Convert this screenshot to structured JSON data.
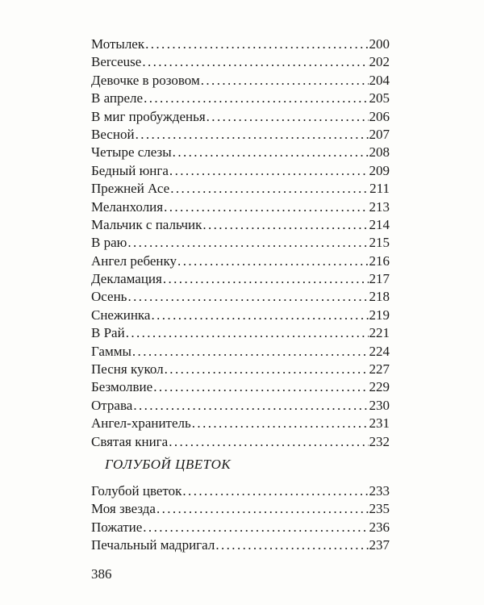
{
  "entries": [
    {
      "title": "Мотылек",
      "page": "200"
    },
    {
      "title": "Berceuse",
      "page": "202"
    },
    {
      "title": "Девочке в розовом",
      "page": "204"
    },
    {
      "title": "В апреле",
      "page": "205"
    },
    {
      "title": "В миг пробужденья",
      "page": "206"
    },
    {
      "title": "Весной",
      "page": "207"
    },
    {
      "title": "Четыре слезы",
      "page": "208"
    },
    {
      "title": "Бедный юнга",
      "page": "209"
    },
    {
      "title": "Прежней Асе",
      "page": "211"
    },
    {
      "title": "Меланхолия",
      "page": "213"
    },
    {
      "title": "Мальчик с пальчик",
      "page": "214"
    },
    {
      "title": "В раю",
      "page": "215"
    },
    {
      "title": "Ангел ребенку",
      "page": "216"
    },
    {
      "title": "Декламация",
      "page": "217"
    },
    {
      "title": "Осень",
      "page": "218"
    },
    {
      "title": "Снежинка",
      "page": "219"
    },
    {
      "title": "В Рай",
      "page": "221"
    },
    {
      "title": "Гаммы",
      "page": "224"
    },
    {
      "title": "Песня кукол",
      "page": "227"
    },
    {
      "title": "Безмолвие",
      "page": "229"
    },
    {
      "title": "Отрава",
      "page": "230"
    },
    {
      "title": "Ангел-хранитель",
      "page": "231"
    },
    {
      "title": "Святая книга",
      "page": "232"
    }
  ],
  "section": {
    "heading": "ГОЛУБОЙ ЦВЕТОК",
    "entries": [
      {
        "title": "Голубой цветок",
        "page": "233"
      },
      {
        "title": "Моя звезда",
        "page": "235"
      },
      {
        "title": "Пожатие",
        "page": "236"
      },
      {
        "title": "Печальный мадригал",
        "page": "237"
      }
    ]
  },
  "page_number": "386"
}
